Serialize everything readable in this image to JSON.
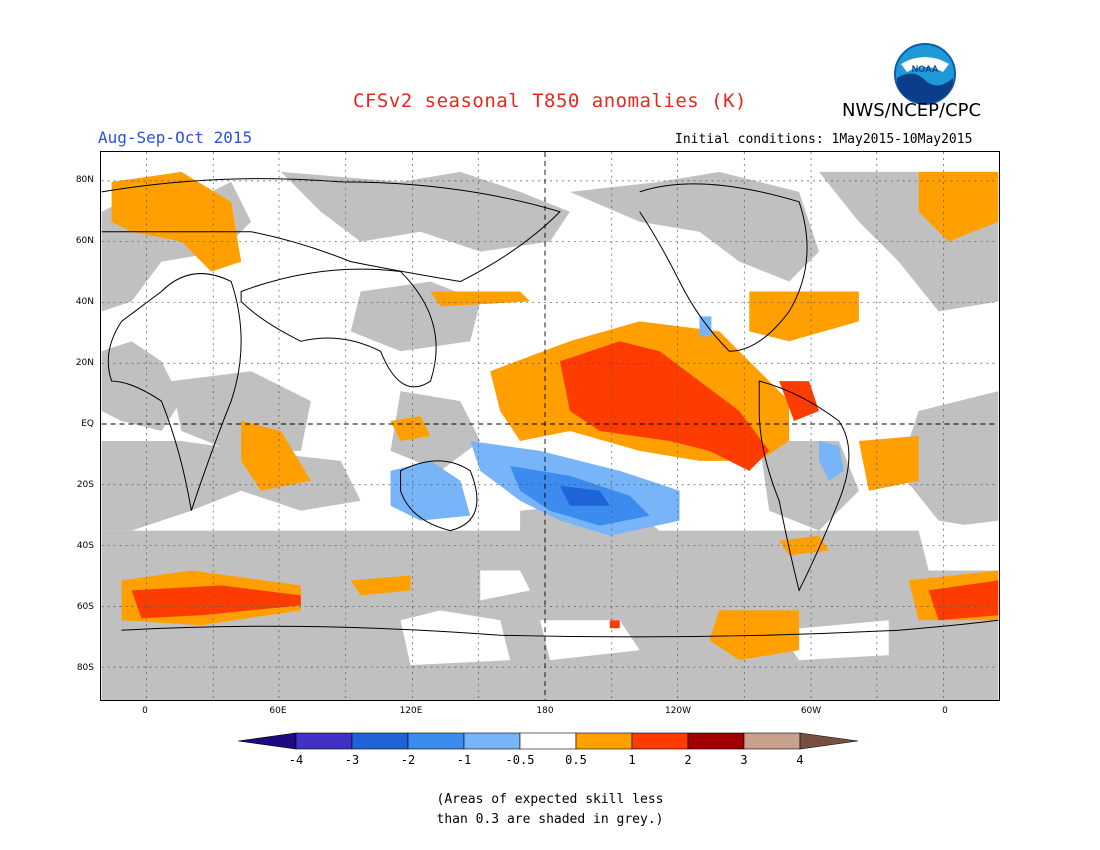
{
  "title": "CFSv2 seasonal T850 anomalies (K)",
  "agency": "NWS/NCEP/CPC",
  "logo_text": "NOAA",
  "season": "Aug-Sep-Oct 2015",
  "initial_conditions": "Initial conditions: 1May2015-10May2015",
  "lat_labels": [
    "80N",
    "60N",
    "40N",
    "20N",
    "EQ",
    "20S",
    "40S",
    "60S",
    "80S"
  ],
  "lon_labels": [
    "0",
    "60E",
    "120E",
    "180",
    "120W",
    "60W",
    "0"
  ],
  "colorbar": {
    "colors": [
      "#1c0a80",
      "#4030c8",
      "#1e64d8",
      "#3c8cf0",
      "#78b4f8",
      "#ffffff",
      "#ffa000",
      "#ff3c00",
      "#a00000",
      "#c8a08c",
      "#785040"
    ],
    "labels": [
      "-4",
      "-3",
      "-2",
      "-1",
      "-0.5",
      "0.5",
      "1",
      "2",
      "3",
      "4"
    ]
  },
  "note_lines": [
    "(Areas of expected skill less",
    "than 0.3 are shaded in grey.)"
  ],
  "colors": {
    "grey_skill": "#c0c0c0",
    "title_red": "#e8261d",
    "season_blue": "#2a52e0"
  }
}
